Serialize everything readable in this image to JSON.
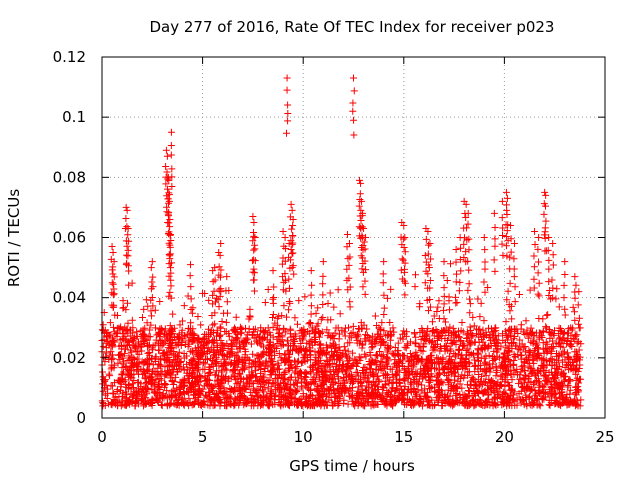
{
  "chart_data": {
    "type": "scatter",
    "title": "Day 277 of 2016, Rate Of TEC Index for receiver p023",
    "xlabel": "GPS time / hours",
    "ylabel": "ROTI / TECUs",
    "xlim": [
      0,
      25
    ],
    "ylim": [
      0,
      0.12
    ],
    "x_ticks": [
      0,
      5,
      10,
      15,
      20,
      25
    ],
    "x_tick_labels": [
      "0",
      "5",
      "10",
      "15",
      "20",
      "25"
    ],
    "y_ticks": [
      0,
      0.02,
      0.04,
      0.06,
      0.08,
      0.1,
      0.12
    ],
    "y_tick_labels": [
      "0",
      "0.02",
      "0.04",
      "0.06",
      "0.08",
      "0.1",
      "0.12"
    ],
    "grid": true,
    "marker": "+",
    "color": "#ff0000",
    "bulk_band": {
      "x_range": [
        0,
        23.8
      ],
      "typical_y_range": [
        0.004,
        0.03
      ],
      "note": "dense cloud of several thousand points"
    },
    "spike_points": [
      {
        "x": 0.5,
        "y": 0.057
      },
      {
        "x": 0.55,
        "y": 0.055
      },
      {
        "x": 0.6,
        "y": 0.052
      },
      {
        "x": 1.2,
        "y": 0.07
      },
      {
        "x": 1.25,
        "y": 0.069
      },
      {
        "x": 1.3,
        "y": 0.063
      },
      {
        "x": 2.5,
        "y": 0.052
      },
      {
        "x": 2.45,
        "y": 0.05
      },
      {
        "x": 3.2,
        "y": 0.089
      },
      {
        "x": 3.25,
        "y": 0.087
      },
      {
        "x": 3.3,
        "y": 0.08
      },
      {
        "x": 3.32,
        "y": 0.079
      },
      {
        "x": 3.35,
        "y": 0.072
      },
      {
        "x": 3.37,
        "y": 0.066
      },
      {
        "x": 3.4,
        "y": 0.061
      },
      {
        "x": 3.42,
        "y": 0.059
      },
      {
        "x": 3.45,
        "y": 0.095
      },
      {
        "x": 4.4,
        "y": 0.051
      },
      {
        "x": 5.5,
        "y": 0.049
      },
      {
        "x": 5.6,
        "y": 0.05
      },
      {
        "x": 5.8,
        "y": 0.055
      },
      {
        "x": 5.9,
        "y": 0.058
      },
      {
        "x": 6.2,
        "y": 0.047
      },
      {
        "x": 7.5,
        "y": 0.067
      },
      {
        "x": 7.55,
        "y": 0.065
      },
      {
        "x": 7.6,
        "y": 0.06
      },
      {
        "x": 8.5,
        "y": 0.049
      },
      {
        "x": 9.0,
        "y": 0.062
      },
      {
        "x": 9.1,
        "y": 0.06
      },
      {
        "x": 9.2,
        "y": 0.113
      },
      {
        "x": 9.4,
        "y": 0.071
      },
      {
        "x": 9.45,
        "y": 0.069
      },
      {
        "x": 9.5,
        "y": 0.066
      },
      {
        "x": 9.3,
        "y": 0.058
      },
      {
        "x": 10.4,
        "y": 0.049
      },
      {
        "x": 11.0,
        "y": 0.052
      },
      {
        "x": 12.2,
        "y": 0.061
      },
      {
        "x": 12.3,
        "y": 0.058
      },
      {
        "x": 12.5,
        "y": 0.113
      },
      {
        "x": 12.8,
        "y": 0.079
      },
      {
        "x": 12.85,
        "y": 0.078
      },
      {
        "x": 12.9,
        "y": 0.072
      },
      {
        "x": 12.95,
        "y": 0.068
      },
      {
        "x": 13.0,
        "y": 0.063
      },
      {
        "x": 13.1,
        "y": 0.06
      },
      {
        "x": 14.0,
        "y": 0.052
      },
      {
        "x": 14.9,
        "y": 0.065
      },
      {
        "x": 15.0,
        "y": 0.064
      },
      {
        "x": 15.05,
        "y": 0.06
      },
      {
        "x": 16.1,
        "y": 0.063
      },
      {
        "x": 16.2,
        "y": 0.062
      },
      {
        "x": 16.3,
        "y": 0.058
      },
      {
        "x": 17.0,
        "y": 0.052
      },
      {
        "x": 17.6,
        "y": 0.056
      },
      {
        "x": 17.8,
        "y": 0.06
      },
      {
        "x": 18.0,
        "y": 0.072
      },
      {
        "x": 18.1,
        "y": 0.071
      },
      {
        "x": 18.2,
        "y": 0.068
      },
      {
        "x": 19.0,
        "y": 0.06
      },
      {
        "x": 19.5,
        "y": 0.068
      },
      {
        "x": 19.9,
        "y": 0.072
      },
      {
        "x": 20.1,
        "y": 0.075
      },
      {
        "x": 20.15,
        "y": 0.073
      },
      {
        "x": 20.3,
        "y": 0.064
      },
      {
        "x": 20.5,
        "y": 0.058
      },
      {
        "x": 21.5,
        "y": 0.062
      },
      {
        "x": 21.7,
        "y": 0.06
      },
      {
        "x": 22.0,
        "y": 0.075
      },
      {
        "x": 22.05,
        "y": 0.074
      },
      {
        "x": 22.2,
        "y": 0.06
      },
      {
        "x": 22.4,
        "y": 0.058
      },
      {
        "x": 23.0,
        "y": 0.052
      },
      {
        "x": 23.5,
        "y": 0.047
      },
      {
        "x": 23.7,
        "y": 0.042
      }
    ]
  }
}
